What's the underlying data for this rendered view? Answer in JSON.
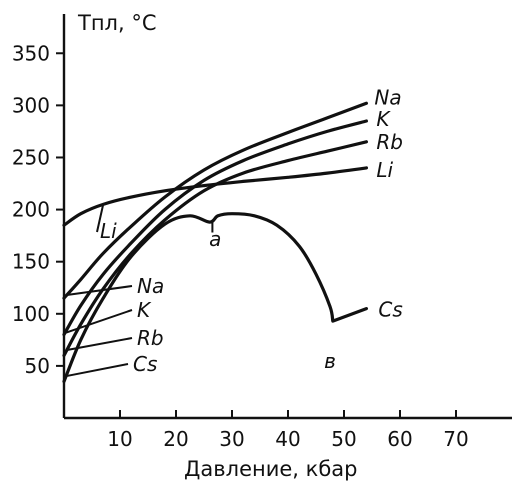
{
  "chart_data": {
    "type": "line",
    "ylabel": "Tпл, °C",
    "xlabel": "Давление, кбар",
    "xlim": [
      0,
      80
    ],
    "ylim": [
      0,
      380
    ],
    "xticks": [
      10,
      20,
      30,
      40,
      50,
      60,
      70
    ],
    "yticks": [
      50,
      100,
      150,
      200,
      250,
      300,
      350
    ],
    "grid": false,
    "legend": "none",
    "series": [
      {
        "name": "Li",
        "x": [
          0,
          3,
          7,
          12,
          18,
          25,
          32,
          40,
          47,
          54
        ],
        "y": [
          185,
          196,
          205,
          212,
          218,
          223,
          227,
          231,
          235,
          240
        ]
      },
      {
        "name": "Na",
        "x": [
          0,
          3,
          7,
          12,
          18,
          25,
          32,
          40,
          47,
          54
        ],
        "y": [
          115,
          133,
          158,
          184,
          212,
          238,
          257,
          274,
          288,
          302
        ]
      },
      {
        "name": "K",
        "x": [
          0,
          3,
          7,
          12,
          18,
          25,
          32,
          40,
          47,
          54
        ],
        "y": [
          80,
          108,
          138,
          168,
          200,
          228,
          247,
          263,
          275,
          285
        ]
      },
      {
        "name": "Rb",
        "x": [
          0,
          3,
          7,
          12,
          18,
          25,
          32,
          40,
          47,
          54
        ],
        "y": [
          60,
          90,
          124,
          158,
          190,
          218,
          235,
          247,
          256,
          265
        ]
      },
      {
        "name": "Cs",
        "x": [
          0,
          3,
          7,
          12,
          18,
          22.5,
          26,
          27.5,
          30,
          34,
          38,
          42,
          45,
          47.5,
          48,
          54
        ],
        "y": [
          35,
          75,
          115,
          155,
          186,
          194,
          188,
          194,
          196,
          194,
          185,
          165,
          138,
          107,
          93,
          105
        ]
      }
    ],
    "annotations": [
      {
        "text": "a",
        "x": 27,
        "y": 165
      },
      {
        "text": "в",
        "x": 47.5,
        "y": 48
      }
    ]
  }
}
